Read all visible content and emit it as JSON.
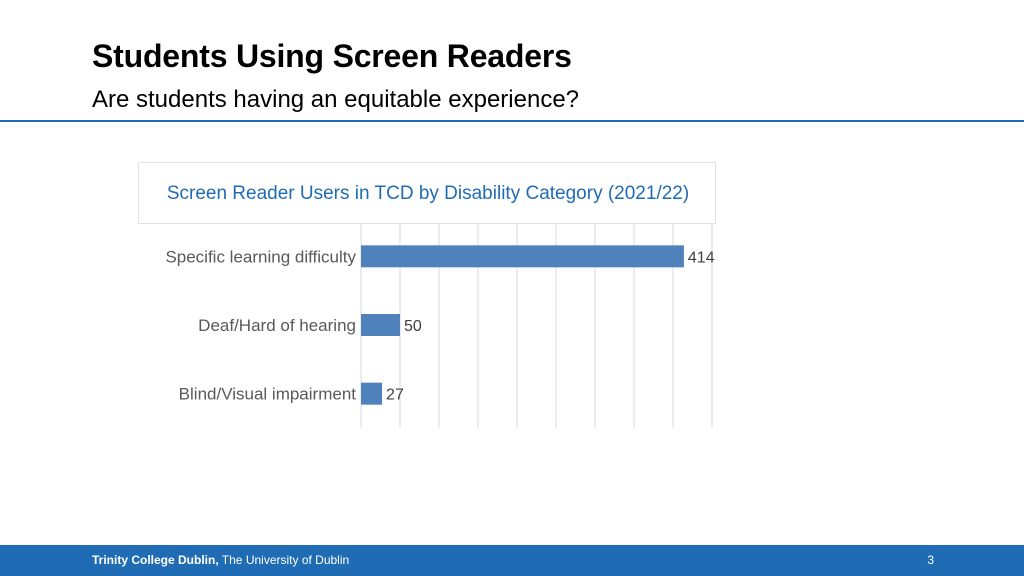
{
  "slide": {
    "title": "Students Using Screen Readers",
    "subtitle": "Are students having an equitable experience?",
    "accent_color": "#1f6cb4"
  },
  "chart_data": {
    "type": "bar",
    "orientation": "horizontal",
    "title": "Screen Reader Users in TCD by Disability Category (2021/22)",
    "categories": [
      "Specific learning difficulty",
      "Deaf/Hard of hearing",
      "Blind/Visual impairment"
    ],
    "values": [
      414,
      50,
      27
    ],
    "data_labels": [
      "414",
      "50",
      "27"
    ],
    "xlim": [
      0,
      450
    ],
    "grid": true,
    "bar_color": "#4f81bd"
  },
  "footer": {
    "institution": "Trinity College Dublin,",
    "university": " The University of Dublin",
    "page_number": "3"
  }
}
